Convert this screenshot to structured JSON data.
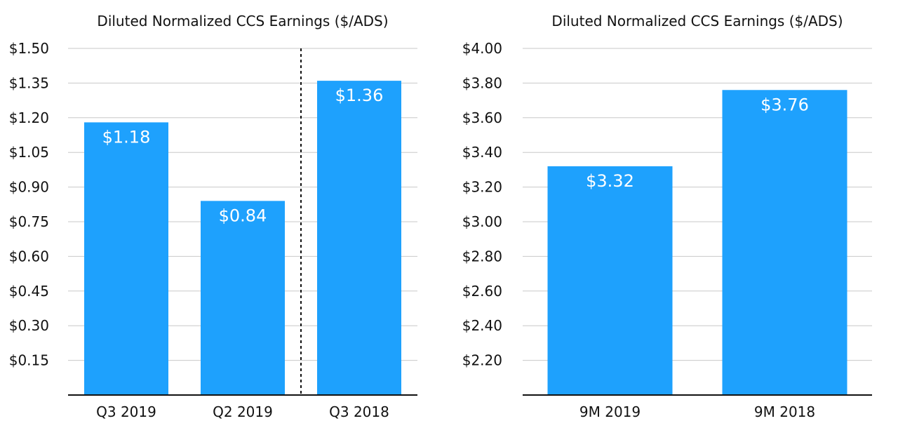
{
  "chart_data": [
    {
      "type": "bar",
      "title": "Diluted Normalized CCS Earnings ($/ADS)",
      "categories": [
        "Q3 2019",
        "Q2 2019",
        "Q3 2018"
      ],
      "values": [
        1.18,
        0.84,
        1.36
      ],
      "data_labels": [
        "$1.18",
        "$0.84",
        "$1.36"
      ],
      "ylim": [
        0,
        1.5
      ],
      "yticks": [
        0.15,
        0.3,
        0.45,
        0.6,
        0.75,
        0.9,
        1.05,
        1.2,
        1.35,
        1.5
      ],
      "ytick_labels": [
        "$0.15",
        "$0.30",
        "$0.45",
        "$0.60",
        "$0.75",
        "$0.90",
        "$1.05",
        "$1.20",
        "$1.35",
        "$1.50"
      ],
      "divider_after_index": 1,
      "grid": true,
      "bar_color": "#1ea1fd"
    },
    {
      "type": "bar",
      "title": "Diluted Normalized CCS Earnings ($/ADS)",
      "categories": [
        "9M 2019",
        "9M 2018"
      ],
      "values": [
        3.32,
        3.76
      ],
      "data_labels": [
        "$3.32",
        "$3.76"
      ],
      "ylim": [
        2.0,
        4.0
      ],
      "yticks": [
        2.2,
        2.4,
        2.6,
        2.8,
        3.0,
        3.2,
        3.4,
        3.6,
        3.8,
        4.0
      ],
      "ytick_labels": [
        "$2.20",
        "$2.40",
        "$2.60",
        "$2.80",
        "$3.00",
        "$3.20",
        "$3.40",
        "$3.60",
        "$3.80",
        "$4.00"
      ],
      "grid": true,
      "bar_color": "#1ea1fd"
    }
  ]
}
